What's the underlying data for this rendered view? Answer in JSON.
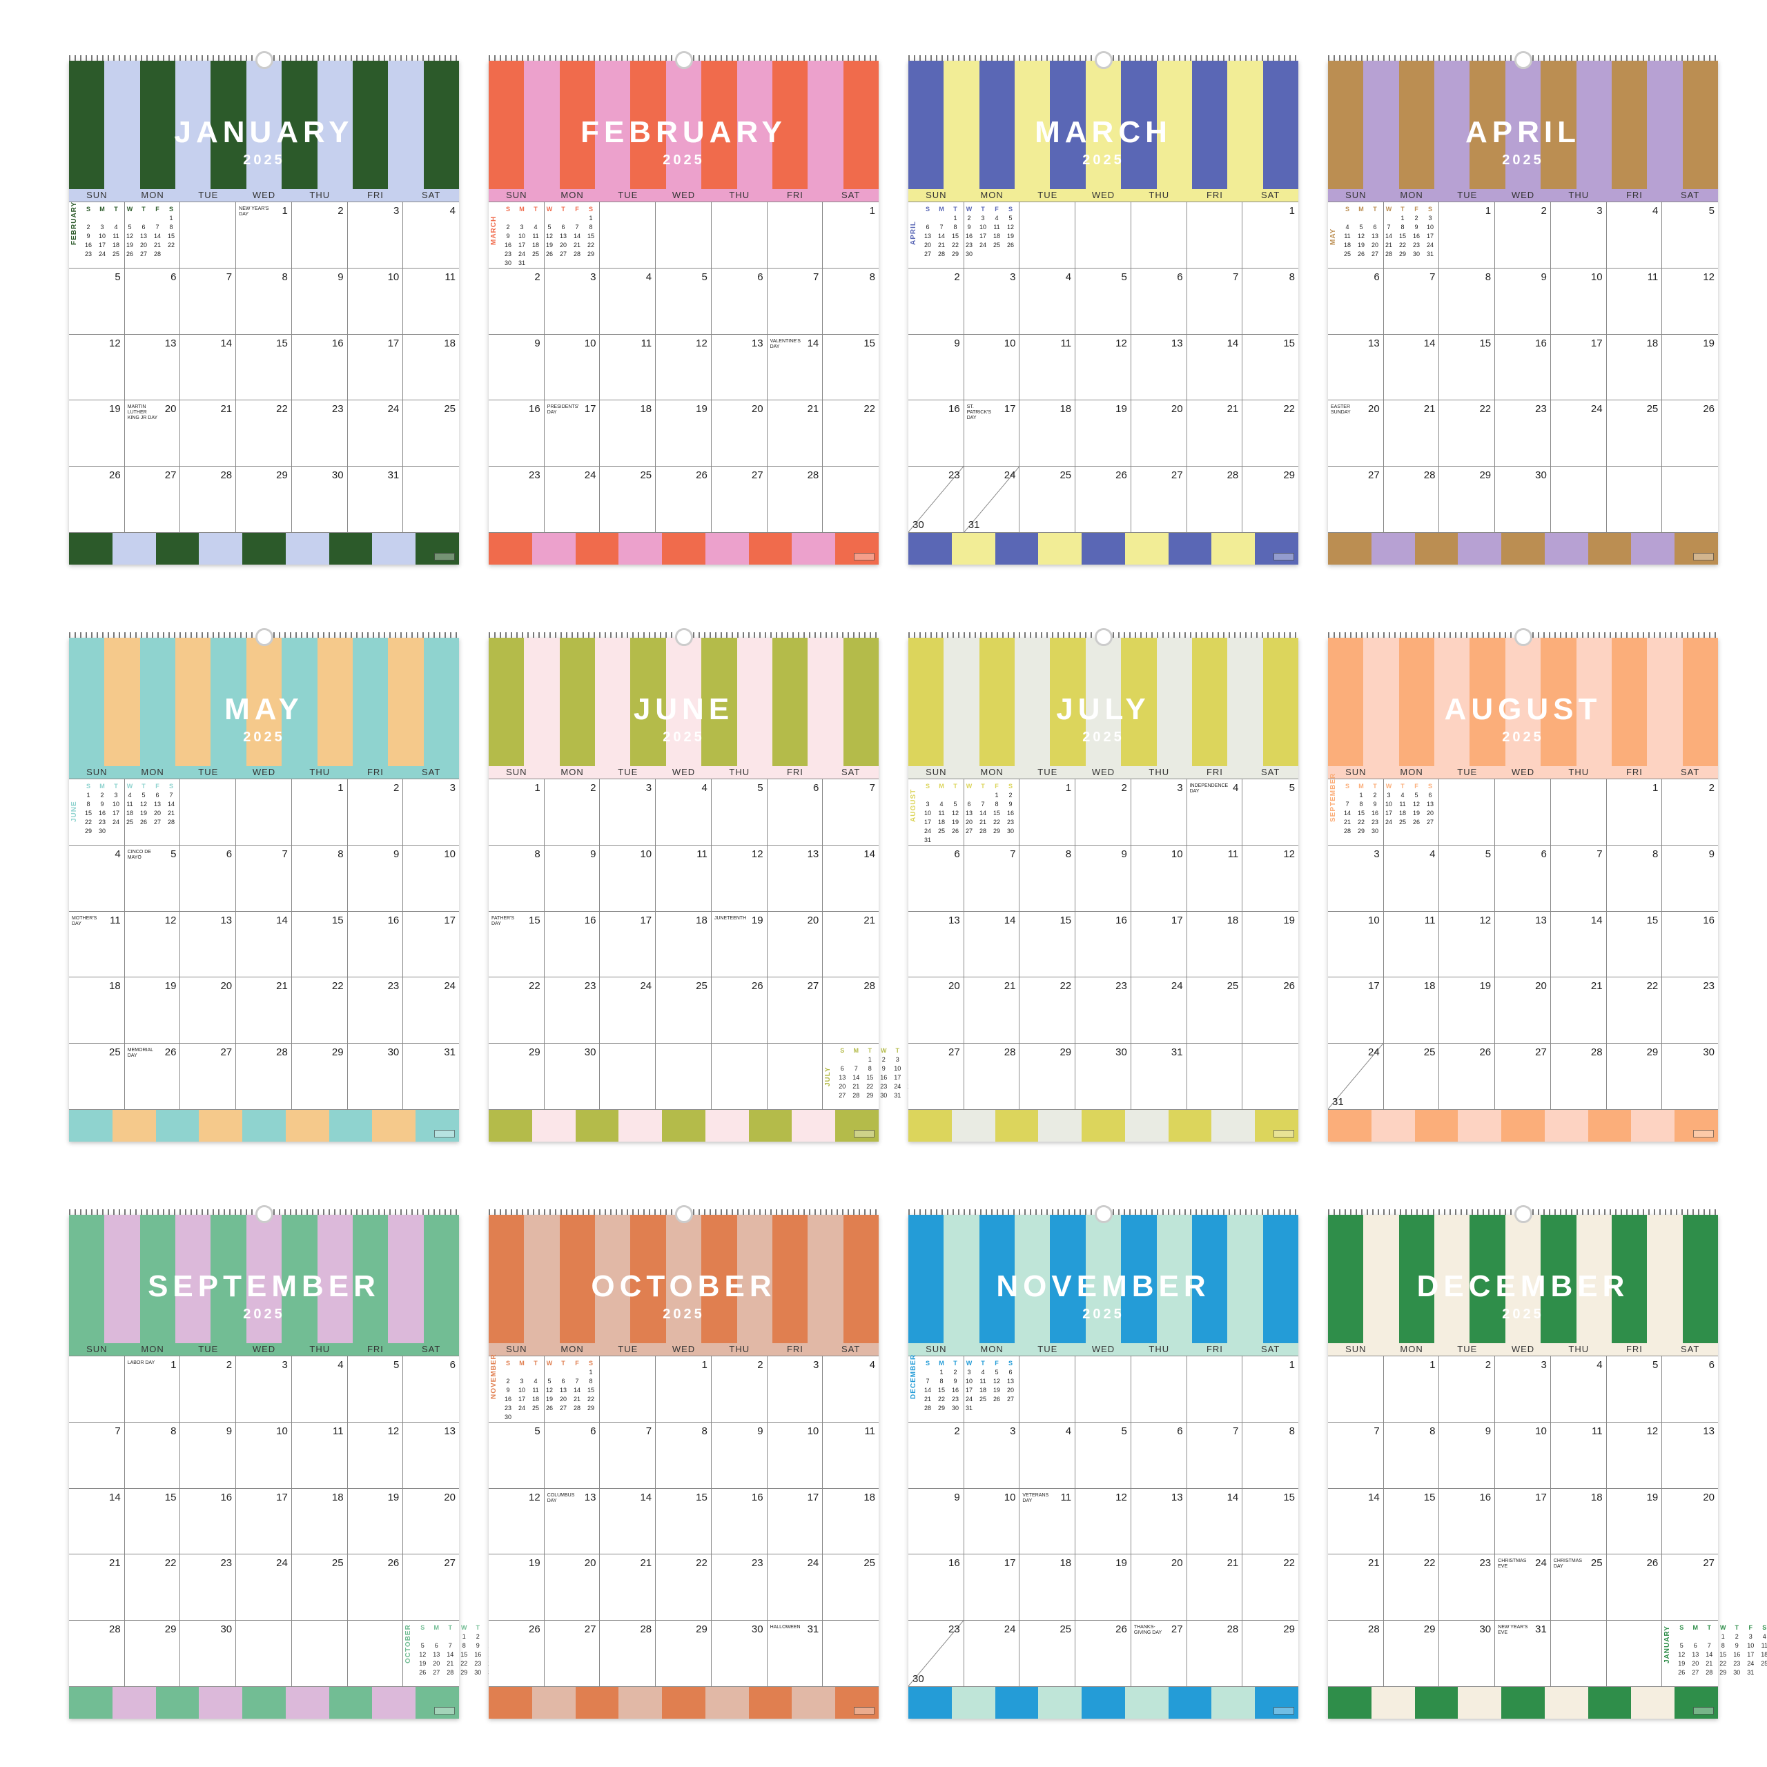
{
  "weekdays": [
    "SUN",
    "MON",
    "TUE",
    "WED",
    "THU",
    "FRI",
    "SAT"
  ],
  "mini_weekdays": [
    "S",
    "M",
    "T",
    "W",
    "T",
    "F",
    "S"
  ],
  "logo_text": "",
  "months": [
    {
      "name": "JANUARY",
      "year": "2025",
      "c1": "#2c5a2a",
      "c2": "#c6d0ee",
      "dow": "#c6d0ee",
      "accent": "#2c5a2a",
      "weeks": [
        [
          "mini",
          "",
          "",
          "1",
          "2",
          "3",
          "4"
        ],
        [
          "5",
          "6",
          "7",
          "8",
          "9",
          "10",
          "11"
        ],
        [
          "12",
          "13",
          "14",
          "15",
          "16",
          "17",
          "18"
        ],
        [
          "19",
          "20",
          "21",
          "22",
          "23",
          "24",
          "25"
        ],
        [
          "26",
          "27",
          "28",
          "29",
          "30",
          "31",
          ""
        ]
      ],
      "holidays": [
        {
          "w": 0,
          "d": 3,
          "t": "NEW YEAR'S DAY"
        },
        {
          "w": 3,
          "d": 1,
          "t": "MARTIN LUTHER KING JR DAY"
        }
      ],
      "mini": {
        "w": 0,
        "label": "FEBRUARY",
        "cells": [
          "",
          "",
          "",
          "",
          "",
          "",
          "1",
          "2",
          "3",
          "4",
          "5",
          "6",
          "7",
          "8",
          "9",
          "10",
          "11",
          "12",
          "13",
          "14",
          "15",
          "16",
          "17",
          "18",
          "19",
          "20",
          "21",
          "22",
          "23",
          "24",
          "25",
          "26",
          "27",
          "28"
        ]
      }
    },
    {
      "name": "FEBRUARY",
      "year": "2025",
      "c1": "#f06b4c",
      "c2": "#eca1cc",
      "dow": "#eca1cc",
      "accent": "#f06b4c",
      "weeks": [
        [
          "mini",
          "",
          "",
          "",
          "",
          "",
          "1"
        ],
        [
          "2",
          "3",
          "4",
          "5",
          "6",
          "7",
          "8"
        ],
        [
          "9",
          "10",
          "11",
          "12",
          "13",
          "14",
          "15"
        ],
        [
          "16",
          "17",
          "18",
          "19",
          "20",
          "21",
          "22"
        ],
        [
          "23",
          "24",
          "25",
          "26",
          "27",
          "28",
          ""
        ]
      ],
      "holidays": [
        {
          "w": 2,
          "d": 5,
          "t": "VALENTINE'S DAY"
        },
        {
          "w": 3,
          "d": 1,
          "t": "PRESIDENTS' DAY"
        }
      ],
      "mini": {
        "w": 0,
        "label": "MARCH",
        "cells": [
          "",
          "",
          "",
          "",
          "",
          "",
          "1",
          "2",
          "3",
          "4",
          "5",
          "6",
          "7",
          "8",
          "9",
          "10",
          "11",
          "12",
          "13",
          "14",
          "15",
          "16",
          "17",
          "18",
          "19",
          "20",
          "21",
          "22",
          "23",
          "24",
          "25",
          "26",
          "27",
          "28",
          "29",
          "30",
          "31"
        ]
      }
    },
    {
      "name": "MARCH",
      "year": "2025",
      "c1": "#5a67b5",
      "c2": "#f2ed96",
      "dow": "#f2ed96",
      "accent": "#5a67b5",
      "weeks": [
        [
          "mini",
          "",
          "",
          "",
          "",
          "",
          "1"
        ],
        [
          "2",
          "3",
          "4",
          "5",
          "6",
          "7",
          "8"
        ],
        [
          "9",
          "10",
          "11",
          "12",
          "13",
          "14",
          "15"
        ],
        [
          "16",
          "17",
          "18",
          "19",
          "20",
          "21",
          "22"
        ],
        [
          "23/30",
          "24/31",
          "25",
          "26",
          "27",
          "28",
          "29"
        ]
      ],
      "holidays": [
        {
          "w": 3,
          "d": 1,
          "t": "ST. PATRICK'S DAY"
        }
      ],
      "mini": {
        "w": 0,
        "label": "APRIL",
        "cells": [
          "",
          "",
          "1",
          "2",
          "3",
          "4",
          "5",
          "6",
          "7",
          "8",
          "9",
          "10",
          "11",
          "12",
          "13",
          "14",
          "15",
          "16",
          "17",
          "18",
          "19",
          "20",
          "21",
          "22",
          "23",
          "24",
          "25",
          "26",
          "27",
          "28",
          "29",
          "30"
        ]
      }
    },
    {
      "name": "APRIL",
      "year": "2025",
      "c1": "#bb8e52",
      "c2": "#b7a1d3",
      "dow": "#b7a1d3",
      "accent": "#bb8e52",
      "weeks": [
        [
          "mini",
          "",
          "1",
          "2",
          "3",
          "4",
          "5"
        ],
        [
          "6",
          "7",
          "8",
          "9",
          "10",
          "11",
          "12"
        ],
        [
          "13",
          "14",
          "15",
          "16",
          "17",
          "18",
          "19"
        ],
        [
          "20",
          "21",
          "22",
          "23",
          "24",
          "25",
          "26"
        ],
        [
          "27",
          "28",
          "29",
          "30",
          "",
          "",
          ""
        ]
      ],
      "holidays": [
        {
          "w": 3,
          "d": 0,
          "t": "EASTER SUNDAY"
        }
      ],
      "mini": {
        "w": 0,
        "label": "MAY",
        "cells": [
          "",
          "",
          "",
          "",
          "1",
          "2",
          "3",
          "4",
          "5",
          "6",
          "7",
          "8",
          "9",
          "10",
          "11",
          "12",
          "13",
          "14",
          "15",
          "16",
          "17",
          "18",
          "19",
          "20",
          "21",
          "22",
          "23",
          "24",
          "25",
          "26",
          "27",
          "28",
          "29",
          "30",
          "31"
        ]
      }
    },
    {
      "name": "MAY",
      "year": "2025",
      "c1": "#8fd3cf",
      "c2": "#f5c98b",
      "dow": "#8fd3cf",
      "accent": "#8fd3cf",
      "weeks": [
        [
          "mini",
          "",
          "",
          "",
          "1",
          "2",
          "3"
        ],
        [
          "4",
          "5",
          "6",
          "7",
          "8",
          "9",
          "10"
        ],
        [
          "11",
          "12",
          "13",
          "14",
          "15",
          "16",
          "17"
        ],
        [
          "18",
          "19",
          "20",
          "21",
          "22",
          "23",
          "24"
        ],
        [
          "25",
          "26",
          "27",
          "28",
          "29",
          "30",
          "31"
        ]
      ],
      "holidays": [
        {
          "w": 1,
          "d": 1,
          "t": "CINCO DE MAYO"
        },
        {
          "w": 2,
          "d": 0,
          "t": "MOTHER'S DAY"
        },
        {
          "w": 4,
          "d": 1,
          "t": "MEMORIAL DAY"
        }
      ],
      "mini": {
        "w": 0,
        "label": "JUNE",
        "cells": [
          "1",
          "2",
          "3",
          "4",
          "5",
          "6",
          "7",
          "8",
          "9",
          "10",
          "11",
          "12",
          "13",
          "14",
          "15",
          "16",
          "17",
          "18",
          "19",
          "20",
          "21",
          "22",
          "23",
          "24",
          "25",
          "26",
          "27",
          "28",
          "29",
          "30"
        ]
      }
    },
    {
      "name": "JUNE",
      "year": "2025",
      "c1": "#b4bb4a",
      "c2": "#fbe6e9",
      "dow": "#fbe6e9",
      "accent": "#b4bb4a",
      "weeks": [
        [
          "1",
          "2",
          "3",
          "4",
          "5",
          "6",
          "7"
        ],
        [
          "8",
          "9",
          "10",
          "11",
          "12",
          "13",
          "14"
        ],
        [
          "15",
          "16",
          "17",
          "18",
          "19",
          "20",
          "21"
        ],
        [
          "22",
          "23",
          "24",
          "25",
          "26",
          "27",
          "28"
        ],
        [
          "29",
          "30",
          "",
          "",
          "",
          "",
          "mini"
        ]
      ],
      "holidays": [
        {
          "w": 2,
          "d": 0,
          "t": "FATHER'S DAY"
        },
        {
          "w": 2,
          "d": 4,
          "t": "JUNETEENTH"
        }
      ],
      "mini": {
        "w": 4,
        "label": "JULY",
        "cells": [
          "",
          "",
          "1",
          "2",
          "3",
          "4",
          "5",
          "6",
          "7",
          "8",
          "9",
          "10",
          "11",
          "12",
          "13",
          "14",
          "15",
          "16",
          "17",
          "18",
          "19",
          "20",
          "21",
          "22",
          "23",
          "24",
          "25",
          "26",
          "27",
          "28",
          "29",
          "30",
          "31"
        ]
      }
    },
    {
      "name": "JULY",
      "year": "2025",
      "c1": "#dcd55c",
      "c2": "#e9ebe3",
      "dow": "#e9ebe3",
      "accent": "#dcd55c",
      "weeks": [
        [
          "mini",
          "",
          "1",
          "2",
          "3",
          "4",
          "5"
        ],
        [
          "6",
          "7",
          "8",
          "9",
          "10",
          "11",
          "12"
        ],
        [
          "13",
          "14",
          "15",
          "16",
          "17",
          "18",
          "19"
        ],
        [
          "20",
          "21",
          "22",
          "23",
          "24",
          "25",
          "26"
        ],
        [
          "27",
          "28",
          "29",
          "30",
          "31",
          "",
          ""
        ]
      ],
      "holidays": [
        {
          "w": 0,
          "d": 5,
          "t": "INDEPENDENCE DAY"
        }
      ],
      "mini": {
        "w": 0,
        "label": "AUGUST",
        "cells": [
          "",
          "",
          "",
          "",
          "",
          "1",
          "2",
          "3",
          "4",
          "5",
          "6",
          "7",
          "8",
          "9",
          "10",
          "11",
          "12",
          "13",
          "14",
          "15",
          "16",
          "17",
          "18",
          "19",
          "20",
          "21",
          "22",
          "23",
          "24",
          "25",
          "26",
          "27",
          "28",
          "29",
          "30",
          "31"
        ]
      }
    },
    {
      "name": "AUGUST",
      "year": "2025",
      "c1": "#fbae7a",
      "c2": "#fdd3c2",
      "dow": "#fdd3c2",
      "accent": "#fbae7a",
      "weeks": [
        [
          "mini",
          "",
          "",
          "",
          "",
          "1",
          "2"
        ],
        [
          "3",
          "4",
          "5",
          "6",
          "7",
          "8",
          "9"
        ],
        [
          "10",
          "11",
          "12",
          "13",
          "14",
          "15",
          "16"
        ],
        [
          "17",
          "18",
          "19",
          "20",
          "21",
          "22",
          "23"
        ],
        [
          "24/31",
          "25",
          "26",
          "27",
          "28",
          "29",
          "30"
        ]
      ],
      "holidays": [],
      "mini": {
        "w": 0,
        "label": "SEPTEMBER",
        "cells": [
          "",
          "1",
          "2",
          "3",
          "4",
          "5",
          "6",
          "7",
          "8",
          "9",
          "10",
          "11",
          "12",
          "13",
          "14",
          "15",
          "16",
          "17",
          "18",
          "19",
          "20",
          "21",
          "22",
          "23",
          "24",
          "25",
          "26",
          "27",
          "28",
          "29",
          "30"
        ]
      }
    },
    {
      "name": "SEPTEMBER",
      "year": "2025",
      "c1": "#72bd94",
      "c2": "#dcb9da",
      "dow": "#72bd94",
      "accent": "#72bd94",
      "weeks": [
        [
          "",
          "1",
          "2",
          "3",
          "4",
          "5",
          "6"
        ],
        [
          "7",
          "8",
          "9",
          "10",
          "11",
          "12",
          "13"
        ],
        [
          "14",
          "15",
          "16",
          "17",
          "18",
          "19",
          "20"
        ],
        [
          "21",
          "22",
          "23",
          "24",
          "25",
          "26",
          "27"
        ],
        [
          "28",
          "29",
          "30",
          "",
          "",
          "",
          "mini"
        ]
      ],
      "holidays": [
        {
          "w": 0,
          "d": 1,
          "t": "LABOR DAY"
        }
      ],
      "mini": {
        "w": 4,
        "label": "OCTOBER",
        "cells": [
          "",
          "",
          "",
          "1",
          "2",
          "3",
          "4",
          "5",
          "6",
          "7",
          "8",
          "9",
          "10",
          "11",
          "12",
          "13",
          "14",
          "15",
          "16",
          "17",
          "18",
          "19",
          "20",
          "21",
          "22",
          "23",
          "24",
          "25",
          "26",
          "27",
          "28",
          "29",
          "30",
          "31"
        ]
      }
    },
    {
      "name": "OCTOBER",
      "year": "2025",
      "c1": "#e07f50",
      "c2": "#e1b8a6",
      "dow": "#e1b8a6",
      "accent": "#e07f50",
      "weeks": [
        [
          "mini",
          "",
          "",
          "1",
          "2",
          "3",
          "4"
        ],
        [
          "5",
          "6",
          "7",
          "8",
          "9",
          "10",
          "11"
        ],
        [
          "12",
          "13",
          "14",
          "15",
          "16",
          "17",
          "18"
        ],
        [
          "19",
          "20",
          "21",
          "22",
          "23",
          "24",
          "25"
        ],
        [
          "26",
          "27",
          "28",
          "29",
          "30",
          "31",
          ""
        ]
      ],
      "holidays": [
        {
          "w": 2,
          "d": 1,
          "t": "COLUMBUS DAY"
        },
        {
          "w": 4,
          "d": 5,
          "t": "HALLOWEEN"
        }
      ],
      "mini": {
        "w": 0,
        "label": "NOVEMBER",
        "cells": [
          "",
          "",
          "",
          "",
          "",
          "",
          "1",
          "2",
          "3",
          "4",
          "5",
          "6",
          "7",
          "8",
          "9",
          "10",
          "11",
          "12",
          "13",
          "14",
          "15",
          "16",
          "17",
          "18",
          "19",
          "20",
          "21",
          "22",
          "23",
          "24",
          "25",
          "26",
          "27",
          "28",
          "29",
          "30"
        ]
      }
    },
    {
      "name": "NOVEMBER",
      "year": "2025",
      "c1": "#249cd7",
      "c2": "#bfe5d8",
      "dow": "#bfe5d8",
      "accent": "#249cd7",
      "weeks": [
        [
          "mini",
          "",
          "",
          "",
          "",
          "",
          "1"
        ],
        [
          "2",
          "3",
          "4",
          "5",
          "6",
          "7",
          "8"
        ],
        [
          "9",
          "10",
          "11",
          "12",
          "13",
          "14",
          "15"
        ],
        [
          "16",
          "17",
          "18",
          "19",
          "20",
          "21",
          "22"
        ],
        [
          "23/30",
          "24",
          "25",
          "26",
          "27",
          "28",
          "29"
        ]
      ],
      "holidays": [
        {
          "w": 2,
          "d": 2,
          "t": "VETERANS DAY"
        },
        {
          "w": 4,
          "d": 4,
          "t": "THANKS-GIVING DAY"
        }
      ],
      "mini": {
        "w": 0,
        "label": "DECEMBER",
        "cells": [
          "",
          "1",
          "2",
          "3",
          "4",
          "5",
          "6",
          "7",
          "8",
          "9",
          "10",
          "11",
          "12",
          "13",
          "14",
          "15",
          "16",
          "17",
          "18",
          "19",
          "20",
          "21",
          "22",
          "23",
          "24",
          "25",
          "26",
          "27",
          "28",
          "29",
          "30",
          "31"
        ]
      }
    },
    {
      "name": "DECEMBER",
      "year": "2025",
      "c1": "#2f8e4a",
      "c2": "#f5eee0",
      "dow": "#f5eee0",
      "accent": "#2f8e4a",
      "weeks": [
        [
          "",
          "1",
          "2",
          "3",
          "4",
          "5",
          "6"
        ],
        [
          "7",
          "8",
          "9",
          "10",
          "11",
          "12",
          "13"
        ],
        [
          "14",
          "15",
          "16",
          "17",
          "18",
          "19",
          "20"
        ],
        [
          "21",
          "22",
          "23",
          "24",
          "25",
          "26",
          "27"
        ],
        [
          "28",
          "29",
          "30",
          "31",
          "",
          "",
          "mini"
        ]
      ],
      "holidays": [
        {
          "w": 3,
          "d": 3,
          "t": "CHRISTMAS EVE"
        },
        {
          "w": 3,
          "d": 4,
          "t": "CHRISTMAS DAY"
        },
        {
          "w": 4,
          "d": 3,
          "t": "NEW YEAR'S EVE"
        }
      ],
      "mini": {
        "w": 4,
        "label": "JANUARY",
        "cells": [
          "",
          "",
          "",
          "1",
          "2",
          "3",
          "4",
          "5",
          "6",
          "7",
          "8",
          "9",
          "10",
          "11",
          "12",
          "13",
          "14",
          "15",
          "16",
          "17",
          "18",
          "19",
          "20",
          "21",
          "22",
          "23",
          "24",
          "25",
          "26",
          "27",
          "28",
          "29",
          "30",
          "31"
        ]
      }
    }
  ]
}
